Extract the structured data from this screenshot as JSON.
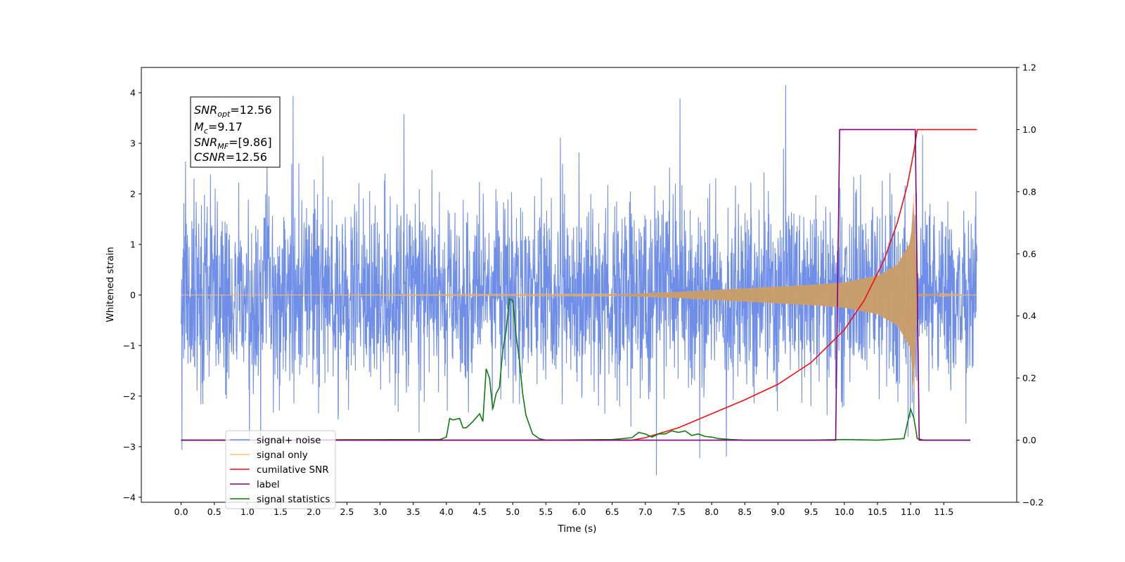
{
  "chart_data": {
    "type": "line",
    "xlabel": "Time (s)",
    "ylabel": "Whitened strain",
    "xlim": [
      -0.6,
      12.6
    ],
    "ylim": [
      -4.1,
      4.5
    ],
    "y2lim": [
      -0.2,
      1.2
    ],
    "x_ticks": [
      0.0,
      0.5,
      1.0,
      1.5,
      2.0,
      2.5,
      3.0,
      3.5,
      4.0,
      4.5,
      5.0,
      5.5,
      6.0,
      6.5,
      7.0,
      7.5,
      8.0,
      8.5,
      9.0,
      9.5,
      10.0,
      10.5,
      11.0,
      11.5
    ],
    "x_tick_labels": [
      "0.0",
      "0.5",
      "1.0",
      "1.5",
      "2.0",
      "2.5",
      "3.0",
      "3.5",
      "4.0",
      "4.5",
      "5.0",
      "5.5",
      "6.0",
      "6.5",
      "7.0",
      "7.5",
      "8.0",
      "8.5",
      "9.0",
      "9.5",
      "10.0",
      "10.5",
      "11.0",
      "11.5"
    ],
    "y_ticks": [
      -4,
      -3,
      -2,
      -1,
      0,
      1,
      2,
      3,
      4
    ],
    "y_tick_labels": [
      "−4",
      "−3",
      "−2",
      "−1",
      "0",
      "1",
      "2",
      "3",
      "4"
    ],
    "y2_ticks": [
      -0.2,
      0.0,
      0.2,
      0.4,
      0.6,
      0.8,
      1.0,
      1.2
    ],
    "y2_tick_labels": [
      "−0.2",
      "0.0",
      "0.2",
      "0.4",
      "0.6",
      "0.8",
      "1.0",
      "1.2"
    ],
    "legend_position": "lower-left",
    "grid": false,
    "stats_box": {
      "snr_opt": {
        "base": "SNR",
        "sub": "opt",
        "value": "=12.56"
      },
      "mc": {
        "base": "M",
        "sub": "c",
        "value": "=9.17"
      },
      "snr_mf": {
        "base": "SNR",
        "sub": "MF",
        "value": "=[9.86]"
      },
      "csnr": {
        "base": "CSNR",
        "sub": "",
        "value": "=12.56"
      }
    },
    "series": [
      {
        "name": "signal+ noise",
        "color": "#6f8ee8",
        "axis": "left",
        "description_range": [
          -3.6,
          4.15
        ],
        "t_start": 0.0,
        "t_end": 12.0
      },
      {
        "name": "signal only",
        "color": "#ffc266",
        "axis": "left",
        "envelope": {
          "t": [
            0.0,
            6.5,
            7.5,
            8.5,
            9.5,
            10.0,
            10.5,
            10.8,
            11.0,
            11.05,
            11.1,
            12.0
          ],
          "amp": [
            0.0,
            0.01,
            0.06,
            0.13,
            0.2,
            0.25,
            0.38,
            0.6,
            1.05,
            2.0,
            0.02,
            0.0
          ]
        }
      },
      {
        "name": "cumilative SNR",
        "color": "#ee1111",
        "axis": "right",
        "x": [
          6.8,
          7.0,
          7.5,
          8.0,
          8.5,
          9.0,
          9.5,
          10.0,
          10.3,
          10.6,
          10.8,
          10.95,
          11.05,
          11.1,
          12.0
        ],
        "y": [
          0.0,
          0.008,
          0.04,
          0.085,
          0.13,
          0.18,
          0.25,
          0.355,
          0.45,
          0.58,
          0.7,
          0.82,
          0.93,
          1.0,
          1.0
        ]
      },
      {
        "name": "label",
        "color": "#800080",
        "axis": "right",
        "x": [
          0.0,
          9.87,
          9.93,
          11.07,
          11.13,
          11.9
        ],
        "y": [
          0.0,
          0.0,
          1.0,
          1.0,
          0.0,
          0.0
        ]
      },
      {
        "name": "signal statistics",
        "color": "#117a11",
        "axis": "right",
        "x": [
          0.0,
          3.9,
          4.0,
          4.05,
          4.1,
          4.2,
          4.25,
          4.3,
          4.4,
          4.5,
          4.55,
          4.6,
          4.65,
          4.7,
          4.75,
          4.8,
          4.85,
          4.9,
          4.95,
          5.0,
          5.05,
          5.1,
          5.15,
          5.2,
          5.3,
          5.4,
          5.5,
          6.5,
          6.8,
          6.9,
          7.0,
          7.1,
          7.2,
          7.3,
          7.4,
          7.5,
          7.6,
          7.7,
          7.8,
          7.9,
          8.0,
          8.1,
          8.3,
          8.5,
          9.0,
          9.5,
          10.0,
          10.5,
          10.9,
          11.0,
          11.05,
          11.1,
          11.2,
          11.9
        ],
        "y": [
          0.0,
          0.002,
          0.01,
          0.07,
          0.065,
          0.07,
          0.04,
          0.04,
          0.06,
          0.085,
          0.06,
          0.23,
          0.2,
          0.1,
          0.15,
          0.17,
          0.29,
          0.35,
          0.455,
          0.45,
          0.34,
          0.26,
          0.15,
          0.08,
          0.02,
          0.005,
          0.0,
          0.002,
          0.008,
          0.025,
          0.02,
          0.01,
          0.02,
          0.02,
          0.03,
          0.025,
          0.03,
          0.015,
          0.02,
          0.012,
          0.01,
          0.005,
          0.002,
          0.0,
          0.0,
          0.0,
          0.002,
          0.0,
          0.005,
          0.1,
          0.07,
          0.005,
          0.0,
          0.0
        ]
      }
    ],
    "legend_labels": [
      "signal+ noise",
      "signal only",
      "cumilative SNR",
      "label",
      "signal statistics"
    ]
  }
}
